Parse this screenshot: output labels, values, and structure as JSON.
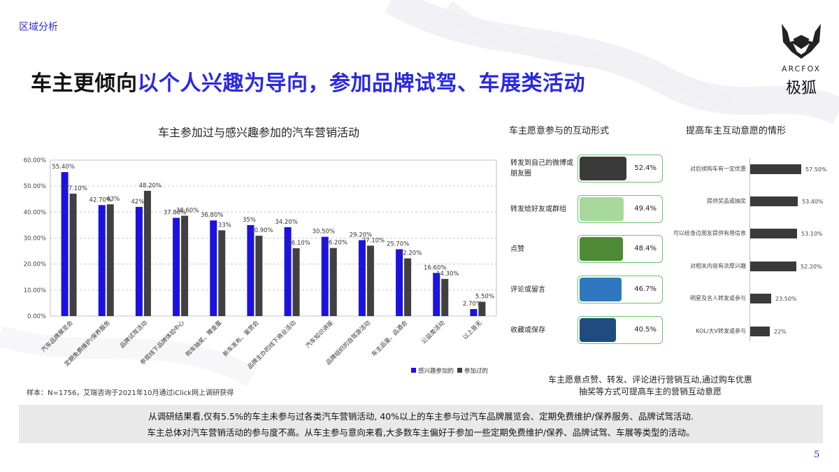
{
  "header": {
    "section": "区域分析",
    "title_prefix": "车主更倾向",
    "title_highlight": "以个人兴趣为导向，参加品牌试驾、车展类活动"
  },
  "logo": {
    "name": "ARCFOX",
    "name_cn": "极狐"
  },
  "main_chart": {
    "title": "车主参加过与感兴趣参加的汽车营销活动"
  },
  "chart_data": [
    {
      "type": "bar",
      "title": "车主参加过与感兴趣参加的汽车营销活动",
      "categories": [
        "汽车品牌展览会",
        "定期免费维护/保养服务",
        "品牌试驾活动",
        "参观线下品牌体验中心",
        "购车抽奖、赠金蛋",
        "新车发布、鉴赏会",
        "品牌主办的线下商业活动",
        "汽车知识讲座",
        "品牌组织的自驾游活动",
        "车主品鉴、品酒会",
        "公益类活动",
        "以上皆无"
      ],
      "series": [
        {
          "name": "感兴趣参加的",
          "color": "#1c12e0",
          "values": [
            55.4,
            42.7,
            42,
            37.8,
            36.8,
            35,
            34.2,
            30.5,
            29.2,
            25.7,
            16.6,
            2.7
          ],
          "labels": [
            "55.40%",
            "42.70%",
            "42%",
            "37.80%",
            "36.80%",
            "35%",
            "34.20%",
            "30.50%",
            "29.20%",
            "25.70%",
            "16.60%",
            "2.70%"
          ]
        },
        {
          "name": "参加过的",
          "color": "#404040",
          "values": [
            47.1,
            43,
            48.2,
            38.6,
            33,
            30.9,
            26.1,
            26.2,
            27.1,
            22.2,
            14.3,
            5.5
          ],
          "labels": [
            "47.10%",
            "43%",
            "48.20%",
            "38.60%",
            "33%",
            "30.90%",
            "26.10%",
            "26.20%",
            "27.10%",
            "22.20%",
            "14.30%",
            "5.50%"
          ]
        }
      ],
      "yticks": [
        "0.00%",
        "10.00%",
        "20.00%",
        "30.00%",
        "40.00%",
        "50.00%",
        "60.00%"
      ],
      "ylim": [
        0,
        60
      ],
      "grid": true,
      "legend": "bottom-right"
    },
    {
      "type": "bar",
      "title": "车主愿意参与的互动形式",
      "categories": [
        "转发到自己的微博或朋友圈",
        "转发给好友或群组",
        "点赞",
        "评论或留言",
        "收藏或保存"
      ],
      "values": [
        52.4,
        49.4,
        48.4,
        46.7,
        40.5
      ],
      "labels": [
        "52.4%",
        "49.4%",
        "48.4%",
        "46.7%",
        "40.5%"
      ],
      "colors": [
        "#3a3a3a",
        "#a8d89a",
        "#4e8a36",
        "#2f78c0",
        "#1f4b80"
      ]
    },
    {
      "type": "bar",
      "title": "提高车主互动意愿的情形",
      "categories": [
        "对后续购车有一定优惠",
        "提供奖品或抽奖",
        "可以给身边朋友提供有用信息",
        "对相关内容有浓厚兴趣",
        "明星及名人转发或参与",
        "KOL/大V转发或参与"
      ],
      "values": [
        57.5,
        53.4,
        53.1,
        52.2,
        23.5,
        22
      ],
      "labels": [
        "57.50%",
        "53.40%",
        "53.10%",
        "52.20%",
        "23.50%",
        "22%"
      ]
    }
  ],
  "interaction_panel": {
    "title": "车主愿意参与的互动形式",
    "items": [
      {
        "label": "转发到自己的微博或朋友圈",
        "value": "52.4%"
      },
      {
        "label": "转发给好友或群组",
        "value": "49.4%"
      },
      {
        "label": "点赞",
        "value": "48.4%"
      },
      {
        "label": "评论或留言",
        "value": "46.7%"
      },
      {
        "label": "收藏或保存",
        "value": "40.5%"
      }
    ],
    "note_line1": "车主愿意点赞、转发、评论进行营销互动,通过购车优惠",
    "note_line2": "抽奖等方式可提高车主的营销互动意愿"
  },
  "motivation_panel": {
    "title": "提高车主互动意愿的情形"
  },
  "source_note": "样本：N=1756，艾瑞咨询于2021年10月通过iClick网上调研获得",
  "summary": {
    "line1": "从调研结果看,仅有5.5%的车主未参与过各类汽车营销活动, 40%以上的车主参与过汽车品牌展览会、定期免费维护/保养服务、品牌试驾活动.",
    "line2": "车主总体对汽车营销活动的参与度不高。从车主参与意向来看,大多数车主偏好于参加一些定期免费维护/保养、品牌试驾、车展等类型的活动。"
  },
  "page_number": "5"
}
